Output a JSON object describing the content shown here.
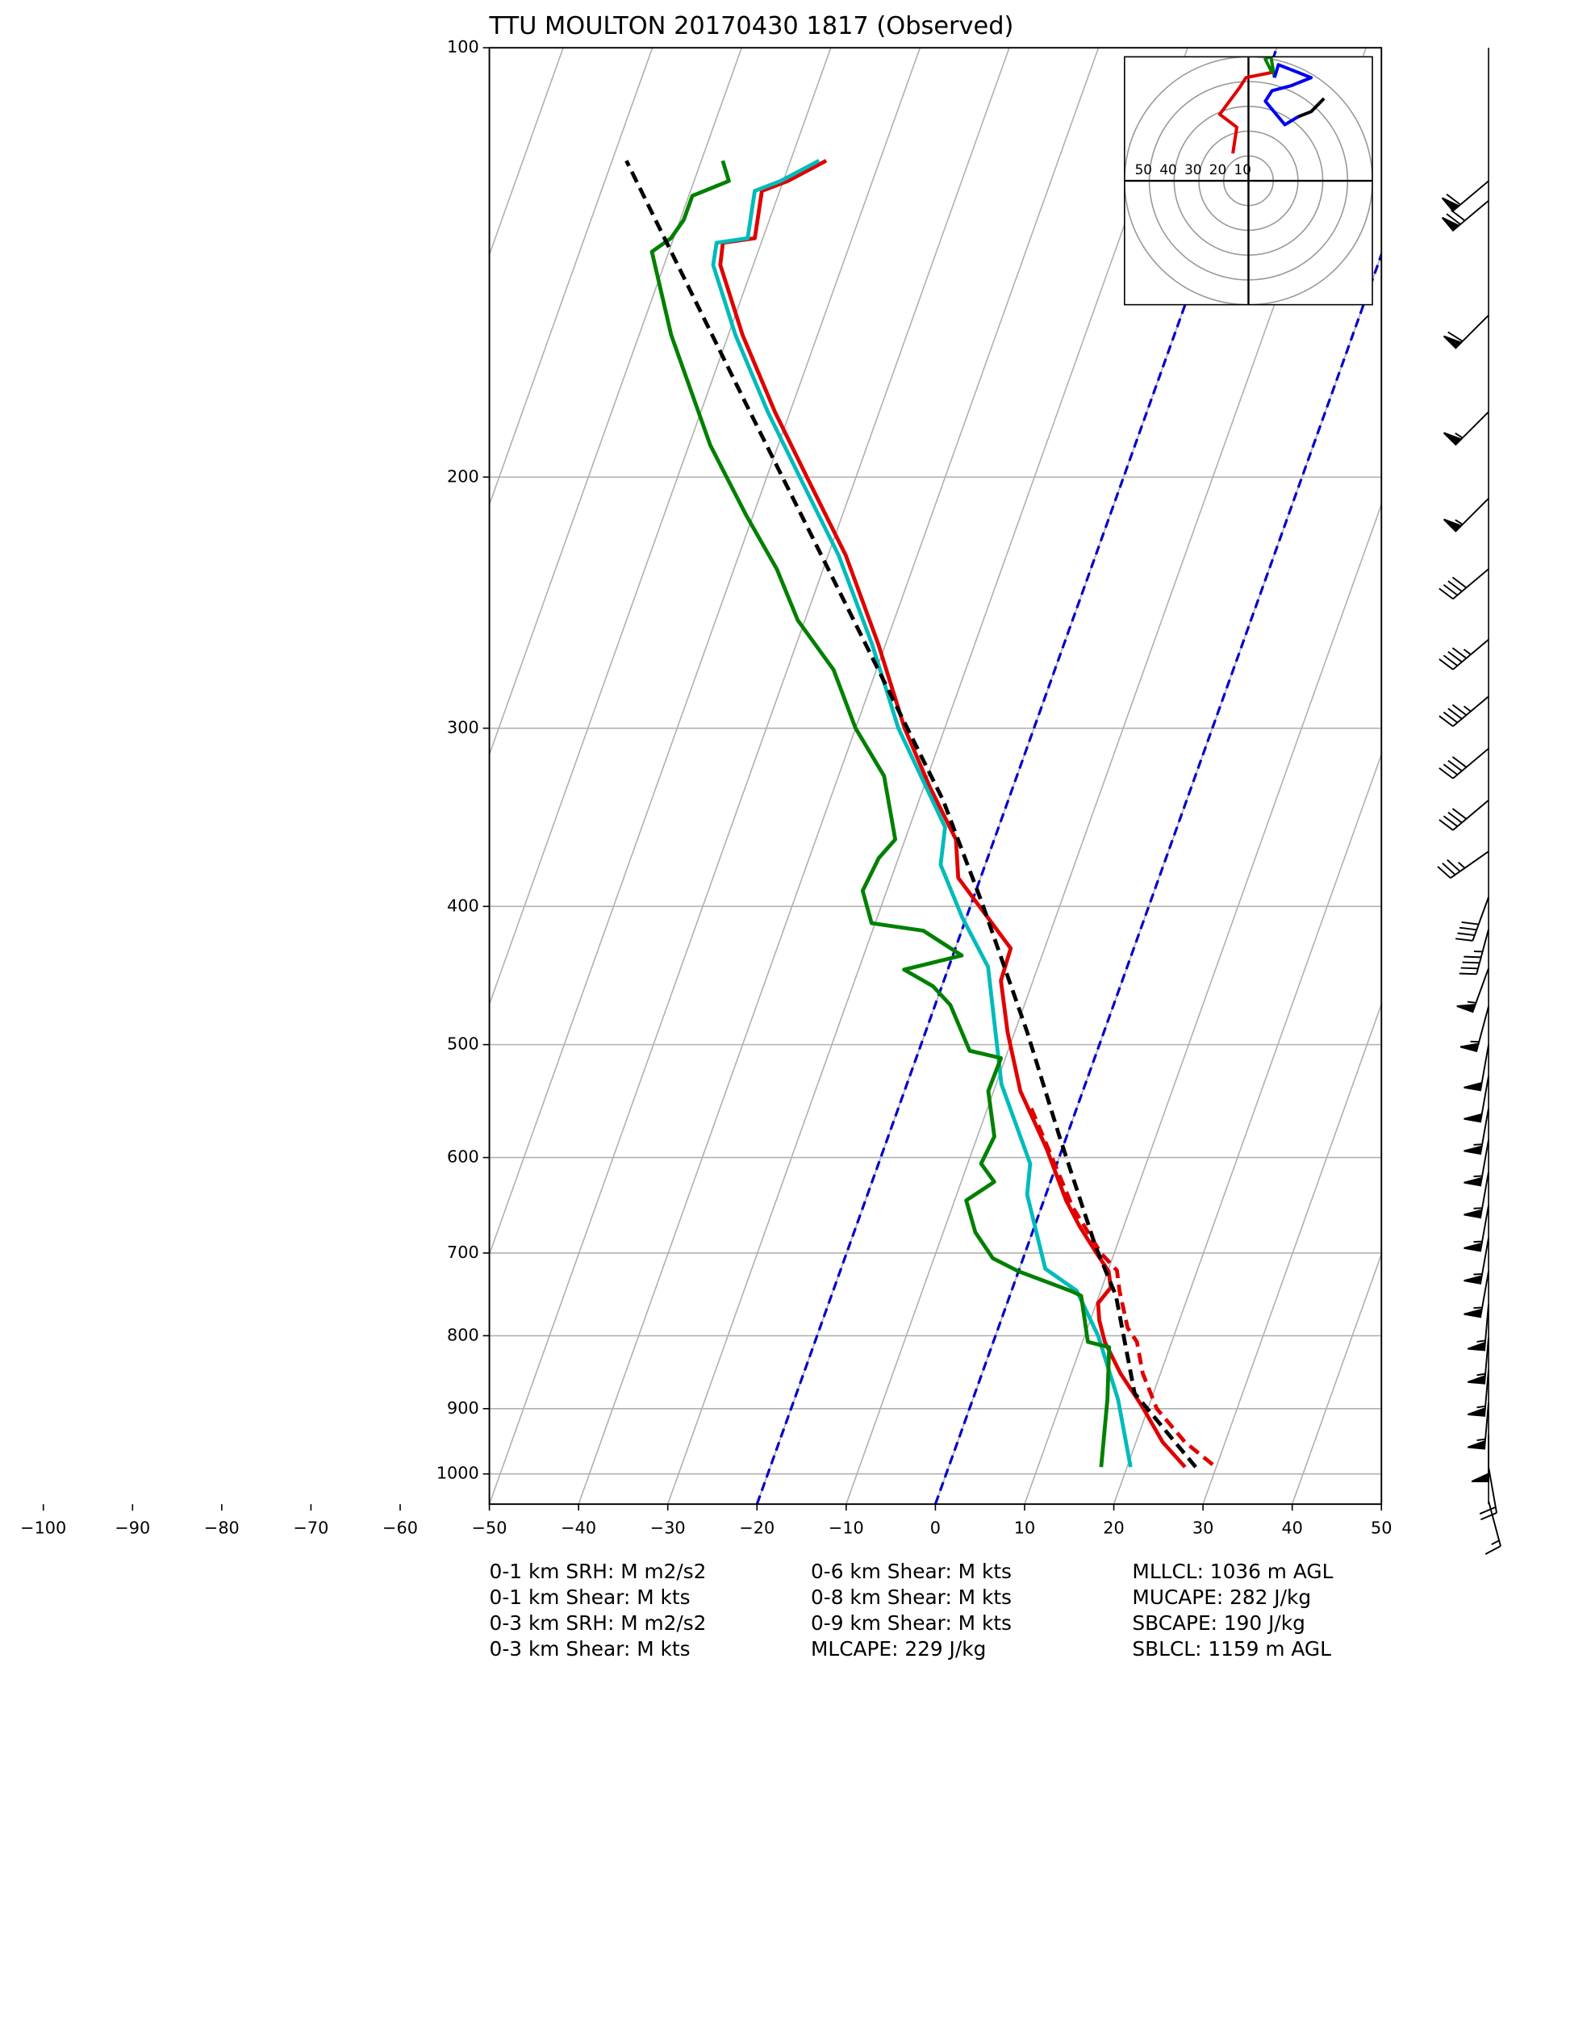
{
  "chart_data": {
    "type": "skewt",
    "title": "TTU MOULTON 20170430 1817   (Observed)",
    "yscale": "log",
    "ylim": [
      1050,
      100
    ],
    "yticks": [
      100,
      200,
      300,
      400,
      500,
      600,
      700,
      800,
      900,
      1000
    ],
    "xlim": [
      -50,
      50
    ],
    "xticks": [
      {
        "value": -100,
        "label": "−100"
      },
      {
        "value": -90,
        "label": "−90"
      },
      {
        "value": -80,
        "label": "−80"
      },
      {
        "value": -70,
        "label": "−70"
      },
      {
        "value": -60,
        "label": "−60"
      },
      {
        "value": -50,
        "label": "−50"
      },
      {
        "value": -40,
        "label": "−40"
      },
      {
        "value": -30,
        "label": "−30"
      },
      {
        "value": -20,
        "label": "−20"
      },
      {
        "value": -10,
        "label": "−10"
      },
      0,
      10,
      20,
      30,
      40,
      50
    ],
    "grid": true,
    "dashed_isotherms": {
      "values": [
        -20,
        0
      ],
      "color": "#0000cc"
    },
    "series": [
      {
        "color": "#e00000",
        "style": "solid",
        "pressure": [
          989,
          950,
          900,
          887,
          850,
          808,
          780,
          759,
          740,
          721,
          699,
          670,
          643,
          591,
          539,
          490,
          451,
          428,
          402,
          382,
          359,
          330,
          300,
          262,
          227,
          200,
          180,
          159,
          142,
          137,
          136,
          126,
          124,
          120
        ],
        "values": [
          26.5,
          23,
          19.5,
          18.5,
          15.5,
          12.5,
          11,
          10.2,
          11,
          10.1,
          7.9,
          5,
          2.5,
          -1.8,
          -7,
          -10.8,
          -13.6,
          -13.8,
          -18.6,
          -22.5,
          -24.3,
          -29.3,
          -34.5,
          -40.8,
          -48,
          -55.5,
          -61.7,
          -68.4,
          -73.7,
          -74.3,
          -70.9,
          -72,
          -69.5,
          -66
        ]
      },
      {
        "color": "#e00000",
        "style": "dashed",
        "pressure": [
          985,
          950,
          900,
          850,
          808,
          790,
          744,
          720,
          700,
          650,
          600,
          550
        ],
        "values": [
          29.5,
          25.5,
          21,
          18,
          16.1,
          14.5,
          12.1,
          11,
          8.5,
          3.5,
          -0.8,
          -5.5
        ]
      },
      {
        "color": "#00bbbb",
        "style": "solid",
        "pressure": [
          989,
          887,
          800,
          744,
          718,
          637,
          606,
          533,
          441,
          407,
          374,
          352,
          300,
          262,
          227,
          200,
          180,
          159,
          142,
          137,
          136,
          126,
          124,
          120
        ],
        "values": [
          20.4,
          16.3,
          11.5,
          7.3,
          2.9,
          -2.1,
          -3,
          -9.4,
          -15.6,
          -20.5,
          -25,
          -26,
          -35.2,
          -41.5,
          -48.8,
          -56.3,
          -62.5,
          -69.2,
          -74.5,
          -75,
          -71.7,
          -72.8,
          -70.3,
          -66.8
        ]
      },
      {
        "color": "#008000",
        "style": "solid",
        "pressure": [
          989,
          887,
          815,
          808,
          750,
          744,
          721,
          706,
          677,
          643,
          624,
          606,
          580,
          539,
          511,
          505,
          469,
          455,
          443,
          433,
          416,
          411,
          390,
          370,
          359,
          324,
          300,
          273,
          252,
          232,
          213,
          190,
          159,
          139,
          136,
          132,
          127,
          124,
          120
        ],
        "values": [
          17.1,
          15.1,
          13.2,
          10.6,
          8,
          6.6,
          0,
          -3.4,
          -6.4,
          -8.7,
          -6.3,
          -8.5,
          -8.1,
          -10.6,
          -10.5,
          -14.3,
          -18.3,
          -21,
          -24.9,
          -19,
          -24.3,
          -30.4,
          -32.7,
          -32.2,
          -31.1,
          -34.9,
          -40,
          -44.8,
          -50.8,
          -55.2,
          -60.7,
          -67.6,
          -76.4,
          -81.9,
          -80.3,
          -79.6,
          -79.6,
          -76.1,
          -77.6
        ]
      },
      {
        "color": "#000000",
        "style": "dashed",
        "pressure": [
          989,
          878,
          750,
          692,
          580,
          490,
          398,
          337,
          250,
          180,
          120
        ],
        "values": [
          27.7,
          17.9,
          11.9,
          7.6,
          -0.8,
          -8.6,
          -18.8,
          -27.3,
          -45,
          -64.5,
          -88.4
        ]
      }
    ],
    "barbs": {
      "pressure": [
        124,
        128,
        154,
        180,
        207,
        232,
        260,
        285,
        310,
        337,
        366,
        394,
        415,
        442,
        470,
        500,
        526,
        554,
        583,
        614,
        648,
        683,
        721,
        760,
        802,
        845,
        891,
        939,
        989,
        1045
      ],
      "speed": [
        60,
        70,
        60,
        55,
        55,
        40,
        45,
        45,
        40,
        40,
        35,
        40,
        45,
        55,
        55,
        50,
        50,
        55,
        55,
        55,
        55,
        55,
        55,
        55,
        55,
        55,
        55,
        50,
        20,
        15
      ],
      "direction": [
        230,
        230,
        225,
        225,
        225,
        230,
        230,
        230,
        230,
        230,
        235,
        200,
        195,
        200,
        195,
        190,
        190,
        190,
        190,
        190,
        190,
        190,
        190,
        185,
        185,
        185,
        185,
        180,
        170,
        165
      ]
    },
    "hodograph": {
      "range": [
        -50,
        50
      ],
      "rings": [
        50,
        40,
        30,
        20,
        10
      ],
      "traces": [
        {
          "color": "#e00000",
          "u": [
            -6.3,
            -4.7,
            -11.6,
            -3.7,
            -1,
            9.5
          ],
          "v": [
            11,
            21.6,
            26.8,
            37.4,
            41.6,
            43.7
          ]
        },
        {
          "color": "#008000",
          "u": [
            9.5,
            6.8,
            9,
            10.5
          ],
          "v": [
            43.7,
            49,
            50.5,
            41.6
          ]
        },
        {
          "color": "#0000ee",
          "u": [
            10.5,
            12.1,
            20,
            25.3,
            17.4,
            9.5,
            6.8,
            14.7,
            20
          ],
          "v": [
            41.6,
            46.8,
            43.7,
            41.6,
            38.4,
            36.3,
            32.1,
            22.6,
            25.8
          ]
        },
        {
          "color": "#000000",
          "u": [
            20,
            25.3,
            30.5
          ],
          "v": [
            25.8,
            27.9,
            33.2
          ]
        }
      ]
    },
    "annotations": [
      [
        "0-1 km SRH: M m2/s2",
        "0-1 km Shear: M kts",
        "0-3 km SRH: M m2/s2",
        "0-3 km Shear: M kts"
      ],
      [
        "0-6 km Shear: M kts",
        "0-8 km Shear: M kts",
        "0-9 km Shear: M kts",
        "MLCAPE: 229 J/kg"
      ],
      [
        "MLLCL: 1036 m AGL",
        "MUCAPE: 282 J/kg",
        "SBCAPE: 190 J/kg",
        "SBLCL: 1159 m AGL"
      ]
    ]
  }
}
